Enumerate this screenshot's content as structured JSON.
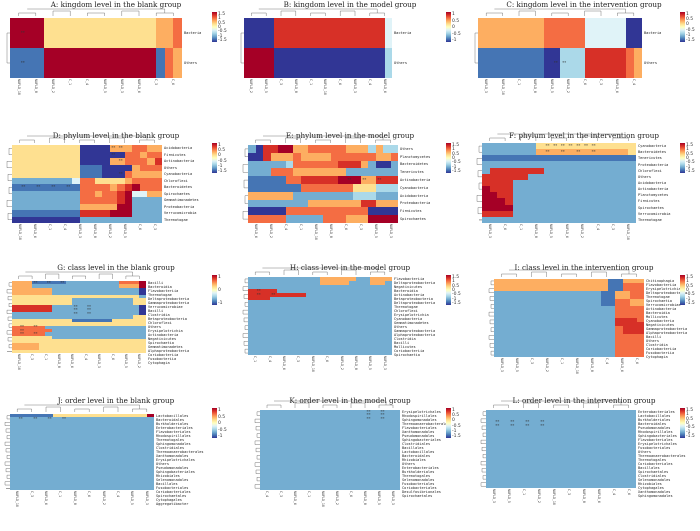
{
  "colors": {
    "dark_red": "#a50026",
    "red": "#d73027",
    "orange": "#f46d43",
    "light_orange": "#fdae61",
    "yellow": "#fee090",
    "pale_blue": "#e0f3f8",
    "light_blue": "#abd9e9",
    "mid_blue": "#74add1",
    "blue": "#4575b4",
    "dark_blue": "#313695"
  },
  "panels": [
    {
      "title": "A: kingdom level in the blank group",
      "ticks": [
        "1.5",
        "1",
        "0.5",
        "0",
        "-0.5",
        "-1",
        "-1.5"
      ],
      "rows": [
        "Bacteria",
        "Others"
      ],
      "cols": [
        "NAFLD_10",
        "NAFLD_8",
        "NAFLD_2",
        "C_1",
        "C_4",
        "NAFLD_5",
        "NAFLD_3",
        "NAFLD_6",
        "C_3",
        "C_6"
      ],
      "grid": [
        "aaaaeeeeeeeeeeeeeddc",
        "iiiiaaaaaaaaaaaaaicd"
      ],
      "star_cells": [
        [
          0,
          1
        ],
        [
          1,
          1
        ]
      ]
    },
    {
      "title": "B: kingdom level in the model group",
      "ticks": [
        "1",
        "0.5",
        "0",
        "-0.5",
        "-1"
      ],
      "rows": [
        "Bacteria",
        "Others"
      ],
      "cols": [
        "NAFLD_2",
        "NAFLD_5",
        "C_3",
        "NAFLD_8",
        "C_1",
        "NAFLD_10",
        "C_6",
        "NAFLD_3",
        "C_4",
        "NAFLD_6"
      ],
      "grid": [
        "jjjjbbbbbbbbbbbbbbbf",
        "aaaajjjjjjjjjjjjjjjg"
      ],
      "star_cells": []
    },
    {
      "title": "C: kingdom level in the intervention group",
      "ticks": [
        "1",
        "0.5",
        "0",
        "-0.5",
        "-1",
        "-1.5"
      ],
      "rows": [
        "Bacteria",
        "Others"
      ],
      "cols": [
        "NAFLD_3",
        "NAFLD_10",
        "C_1",
        "NAFLD_8",
        "NAFLD_5",
        "NAFLD_2",
        "C_6",
        "C_3",
        "NAFLD_6",
        "C_4"
      ],
      "grid": [
        "ddddddddcccccfffffjj",
        "iiiiiiiijjkkkbbbbbcd"
      ],
      "star_cells": [
        [
          1,
          9
        ],
        [
          1,
          10
        ]
      ]
    },
    {
      "title": "D: phylum level in the blank group",
      "ticks": [
        "1",
        "0.5",
        "0",
        "-0.5",
        "-1",
        "-1.5"
      ],
      "rows": [
        "Acidobacteria",
        "Firmicutes",
        "Actinobacteria",
        "Others",
        "Cyanobacteria",
        "Chloroflexi",
        "Bacteroidetes",
        "Spirochaetes",
        "Gemmatimonadetes",
        "Proteobacteria",
        "Verrucomicrobia",
        "Thermotogae"
      ],
      "cols": [
        "NAFLD_10",
        "NAFLD_6",
        "C_1",
        "C_4",
        "NAFLD_3",
        "NAFLD_8",
        "NAFLD_2",
        "NAFLD_5",
        "C_6",
        "C_3"
      ],
      "grid": [
        "eeeeeeeeejjjjdddccdd",
        "eeeeeeeeejjjjjjccdcc",
        "eeeeeeeeejjjjddcccdb",
        "eeeeeeeeeiiijjjjdccc",
        "eeeeeeeeeiiijjjcdddd",
        "hhhhhhhhfcceeeedcccc",
        "iiiiiiiiiccccdcbaccc",
        "hhhhhhhhhccdccbaffdd",
        "hhhhhhhhhcccccbahhhh",
        "hhhhhhhhhdddddaahhhh",
        "iiiiiiiiibbbbaaahhhh",
        "jjjjjjjjjhhhhhhhhhhh"
      ],
      "star_cells": [
        [
          0,
          13
        ],
        [
          0,
          14
        ],
        [
          1,
          13
        ],
        [
          2,
          14
        ],
        [
          4,
          14
        ],
        [
          6,
          1
        ],
        [
          6,
          3
        ],
        [
          6,
          5
        ],
        [
          6,
          7
        ]
      ]
    },
    {
      "title": "E: phylum level in the model group",
      "ticks": [
        "1.5",
        "1",
        "0.5",
        "0",
        "-0.5",
        "-1",
        "-1.5"
      ],
      "rows": [
        "Others",
        "Planctomycetes",
        "Bacteroidetes",
        "Tenericutes",
        "Actinobacteria",
        "Cyanobacteria",
        "Acidobacteria",
        "Proteobacteria",
        "Firmicutes",
        "Spirochaetes"
      ],
      "cols": [
        "NAFLD_6",
        "NAFLD_2",
        "C_4",
        "C_1",
        "NAFLD_10",
        "NAFLD_8",
        "C_6",
        "C_3",
        "NAFLD_5",
        "NAFLD_3"
      ],
      "grid": [
        "hjbbaaddcccccdddgdgg",
        "jjbdddcddddccccccddc",
        "hhhhhgccccccbbbdhjjh",
        "hhhcccdddddddhhhhhhh",
        "iiiiiccbbbbbaaaddbbb",
        "iiiiiiiccccccceeeggg",
        "ddddddhhhhhhhhggghhh",
        "hhhhhhhhdddddddbbddd",
        "jjjjjcccccccccccjjjj",
        "ccccchhhhhcccdddaaaa"
      ],
      "star_cells": [
        [
          4,
          13
        ],
        [
          4,
          15
        ],
        [
          4,
          17
        ]
      ]
    },
    {
      "title": "F: phylum level in the intervention group",
      "ticks": [
        "1.5",
        "1",
        "0.5",
        "0",
        "-0.5",
        "-1",
        "-1.5"
      ],
      "rows": [
        "Cyanobacteria",
        "Bacteroidetes",
        "Tenericutes",
        "Proteobacteria",
        "Chloroflexi",
        "Others",
        "Acidobacteria",
        "Actinobacteria",
        "Planctomycetes",
        "Firmicutes",
        "Spirochaetes",
        "Verrucomicrobia",
        "Thermotogae"
      ],
      "cols": [
        "NAFLD_3",
        "C_6",
        "C_1",
        "NAFLD_8",
        "NAFLD_5",
        "NAFLD_6",
        "NAFLD_2",
        "C_4",
        "C_3",
        "NAFLD_10"
      ],
      "grid": [
        "hhhhhhheeeeeeeeeeeee",
        "hhhhhhhdddddddddddde",
        "iiiiiiiiiiiiiiiiiiii",
        "hhhhhhhhhhhhhhhhhhhh",
        "hbbbbbbbhhhhhhhhhhhh",
        "bbbbbbhhhhhhhhhhhhhh",
        "bbbbhhhhhhhhhhhhhhhh",
        "abbbhhhhhhhhhhhhhhhh",
        "aabbhhhhhhhhhhhhhhhh",
        "aaabhhhhhhhhhhhhhhhh",
        "aaaahhhhhhhhhhhhhhhh",
        "bbbbhhhhhhhhhhhhhhhh",
        "hhhhhhhhhhhhhhhhhhhh"
      ],
      "star_cells": [
        [
          0,
          8
        ],
        [
          0,
          9
        ],
        [
          0,
          10
        ],
        [
          0,
          11
        ],
        [
          0,
          12
        ],
        [
          0,
          13
        ],
        [
          0,
          14
        ],
        [
          1,
          8
        ],
        [
          1,
          10
        ],
        [
          1,
          12
        ],
        [
          1,
          14
        ]
      ]
    },
    {
      "title": "G: class level in the blank group",
      "ticks": [
        "1",
        "0",
        "-1"
      ],
      "rows": [
        "Bacilli",
        "Bacteroidia",
        "Flavobacteriia",
        "Thermotogae",
        "Deltaproteobacteria",
        "Gammaproteobacteria",
        "Verrucomicrobiae",
        "Bacilli",
        "Clostridia",
        "Betaproteobacteria",
        "Chloroflexi",
        "Others",
        "Erysipelotrichia",
        "Actinobacteria",
        "Negativicutes",
        "Spirochaetia",
        "Gemmatimonadetes",
        "Alphaproteobacteria",
        "Coriobacteriia",
        "Fusobacteriia",
        "Cytophagia"
      ],
      "cols": [
        "NAFLD_10",
        "C_3",
        "C_1",
        "NAFLD_8",
        "NAFLD_6",
        "C_4",
        "NAFLD_3",
        "C_6",
        "NAFLD_5",
        "NAFLD_2"
      ],
      "grid": [
        "dddiiiiihhhhhhhhccca",
        "dddhhhhhhhhhhhhhddda",
        "ddddddhhhhhhhhhhhhhj",
        "ddddddhhhhhhhhhhhhhj",
        "eeeeeeeeeeeeeeeeeeeh",
        "eeeeeeeeehhhhhhhhhee",
        "eeeeeeeeehhhhhhhhhee",
        "bbbbbbhhhhhhhhhhhhhj",
        "bbbbbbhhhhhhhhhhhhhj",
        "hhhhhhhhhhhhhhhhhhhj",
        "hhhhhhhhhhhhhhhhhhee",
        "eeeeeeeeeiiiiiieeeee",
        "eeeeeeeeeeeeeeeeeeee",
        "ccccchhhhhhhhhhhhhhh",
        "cccccchhhhhhhhhhhhhh",
        "ccccchhhhhhhhhhhhhhh",
        "eeeeeehhhhhhhhhhhhhh",
        "eeeeeeeeeeeeeeeeeeee",
        "ddddeeeeeeeeeeeeeeee",
        "ddddeeeeeeeeeeeeeeee",
        "eeeeeeeeeeeeeeeeeeee"
      ],
      "star_cells": [
        [
          0,
          3
        ],
        [
          0,
          5
        ],
        [
          0,
          7
        ],
        [
          7,
          9
        ],
        [
          7,
          11
        ],
        [
          8,
          9
        ],
        [
          8,
          11
        ],
        [
          9,
          9
        ],
        [
          9,
          11
        ],
        [
          13,
          1
        ],
        [
          13,
          3
        ],
        [
          14,
          1
        ],
        [
          15,
          1
        ],
        [
          15,
          3
        ]
      ]
    },
    {
      "title": "H: class level in the model group",
      "ticks": [
        "1.5",
        "1",
        "0.5",
        "0",
        "-0.5",
        "-1",
        "-1.5"
      ],
      "rows": [
        "Flavobacteriia",
        "Deltaproteobacteria",
        "Negativicutes",
        "Bacteroidia",
        "Actinobacteria",
        "Betaproteobacteria",
        "Deltaproteobacteria",
        "Thermotogae",
        "Chloroflexi",
        "Erysipelotrichia",
        "Cyanobacteria",
        "Gemmatimonadetes",
        "Others",
        "Gammaproteobacteria",
        "Alphaproteobacteria",
        "Clostridia",
        "Bacilli",
        "Mollicutes",
        "Coriobacteriia",
        "Spirochaetia"
      ],
      "cols": [
        "C_1",
        "C_4",
        "NAFLD_6",
        "C_3",
        "NAFLD_10",
        "C_6",
        "NAFLD_2",
        "NAFLD_8",
        "NAFLD_5",
        "NAFLD_3"
      ],
      "grid": [
        "hhhhhhhhhhdddddhhddd",
        "hhhhhhhhhhddddhhhddh",
        "hhhhhhhhhhhhhhhhhhhh",
        "bbbbhhhhhhhhhhhhhhhh",
        "bbbbbbbbhhhhhhhhhhhh",
        "bbbhhhhhhhhhhhhhhhhh",
        "hhhhhhhhhhhhhhhhhhhh",
        "hhhhhhhhhhhhhhhhhhhh",
        "hhhhhhhhhhhhhhhhhhhh",
        "hhhhhhhhhhhhhhhhhhhh",
        "hhhhhhhhhhhhhhhhhhhh",
        "hhhhhhhhhhhhhhhhhhhh",
        "hhhhhhhhhhhhhhhhhhhh",
        "hhhhhhhhhhhhhhhhhhhh",
        "hhhhhhhhhhhhhhhhhhhh",
        "hhhhhhhhhhhhhhhhhhhh",
        "hhhhhhhhhhhhhhhhhhhh",
        "hhhhhhhhhhhhhhhhhhhh",
        "hhhhhhhhhhhhhhhhhhhh",
        "hhhhhhhhhhhhhhhhhhhh"
      ],
      "star_cells": [
        [
          3,
          1
        ],
        [
          4,
          1
        ],
        [
          4,
          3
        ]
      ]
    },
    {
      "title": "I: class level in the intervention group",
      "ticks": [
        "1.5",
        "1",
        "0.5",
        "0",
        "-0.5",
        "-1",
        "-1.5"
      ],
      "rows": [
        "Chitinophagia",
        "Flavobacteriia",
        "Erysipelotrichia",
        "Deltaproteobacteria",
        "Thermotogae",
        "Spirochaetia",
        "Verrucomicrobiae",
        "Actinobacteria",
        "Bacteroidia",
        "Mollicutes",
        "Cyanobacteria",
        "Negativicutes",
        "Gammaproteobacteria",
        "Alphaproteobacteria",
        "Bacilli",
        "Others",
        "Clostridia",
        "Coriobacteriia",
        "Fusobacteriia",
        "Cytophagia"
      ],
      "cols": [
        "NAFLD_3",
        "NAFLD_5",
        "C_3",
        "NAFLD_2",
        "C_1",
        "NAFLD_10",
        "NAFLD_8",
        "C_4",
        "NAFLD_6",
        "C_6"
      ],
      "grid": [
        "ddddddddddddddddiiddd",
        "ddddddddddddddddiiccc",
        "ddddddddddddddddiiccc",
        "hhhhhhhhhhhhhhhiiddcc",
        "hhhhhhhhhhhhhhhiiddcc",
        "hhhhhhhhhhhhhhhiiccdd",
        "hhhhhhhhhhhhhhhiiccdd",
        "hhhhhhhhhhhhhhhhhcccc",
        "hhhhhhhhhhhhhhhhhcccc",
        "hhhhhhhhhhhhhhhhhcccc",
        "hhhhhhhhhhhhhhhhhbbbc",
        "hhhhhhhhhhhhhhhhhbbbb",
        "hhhhhhhhhhhhhhhhhcbbb",
        "hhhhhhhhhhhhhhhhhcbbb",
        "hhhhhhhhhhhhhhhhhcccc",
        "hhhhhhhhhhhhhhhhhcccc",
        "hhhhhhhhhhhhhhhhhcccc",
        "hhhhhhhhhhhhhhhhhcccc",
        "hhhhhhhhhhhhhhhhhcccc",
        "hhhhhhhhhhhhhhhhhcccc"
      ],
      "star_cells": []
    },
    {
      "title": "J: order level in the blank group",
      "ticks": [
        "1",
        "0.5",
        "0",
        "-0.5",
        "-1"
      ],
      "rows": [
        "Lactobacillales",
        "Bacteroidales",
        "Burkholderiales",
        "Enterobacteriales",
        "Flavobacteriales",
        "Rhodospirillales",
        "Thermotogales",
        "Sphingomonadales",
        "Clostridiales",
        "Thermoanaerobacterales",
        "Xanthomonadales",
        "Erysipelotrichales",
        "Others",
        "Pseudomonadales",
        "Sphingobacteriales",
        "Rhizobiales",
        "Selenomonadales",
        "Bacillales",
        "Fusobacteriales",
        "Coriobacteriales",
        "Spirochaetales",
        "Cytophagales",
        "Aggregatibacter"
      ],
      "cols": [
        "NAFLD_10",
        "C_3",
        "NAFLD_6",
        "C_1",
        "NAFLD_8",
        "C_6",
        "NAFLD_2",
        "C_4",
        "NAFLD_5",
        "NAFLD_3"
      ],
      "grid": [
        "iiiiiieeeeeeeeeeeeea",
        "hhhhhhhhhhhhhhhhhhhh",
        "hhhhhhhhhhhhhhhhhhhh",
        "hhhhhhhhhhhhhhhhhhhh",
        "hhhhhhhhhhhhhhhhhhhh",
        "hhhhhhhhhhhhhhhhhhhh",
        "hhhhhhhhhhhhhhhhhhhh",
        "hhhhhhhhhhhhhhhhhhhh",
        "hhhhhhhhhhhhhhhhhhhh",
        "hhhhhhhhhhhhhhhhhhhh",
        "hhhhhhhhhhhhhhhhhhhh",
        "hhhhhhhhhhhhhhhhhhhh",
        "hhhhhhhhhhhhhhhhhhhh",
        "hhhhhhhhhhhhhhhhhhhh",
        "hhhhhhhhhhhhhhhhhhhh",
        "hhhhhhhhhhhhhhhhhhhh",
        "hhhhhhhhhhhhhhhhhhhh",
        "hhhhhhhhhhhhhhhhhhhh",
        "hhhhhhhhhhhhhhhhhhhh",
        "hhhhhhhhhhhhhhhhhhhh",
        "hhhhhhhhhhhhhhhhhhhh",
        "hhhhhhhhhhhhhhhhhhhh",
        "hhhhhhhhhhhhhhhhhhhh"
      ],
      "star_cells": [
        [
          1,
          1
        ],
        [
          1,
          3
        ],
        [
          1,
          5
        ],
        [
          1,
          7
        ]
      ]
    },
    {
      "title": "K: order level in the model group",
      "ticks": [
        "1",
        "0.5",
        "0",
        "-0.5",
        "-1",
        "-1.5"
      ],
      "rows": [
        "Erysipelotrichales",
        "Rhodospirillales",
        "Sphingomonadales",
        "Thermoanaerobacterales",
        "Flavobacteriales",
        "Xanthomonadales",
        "Pseudomonadales",
        "Sphingobacteriales",
        "Clostridiales",
        "Bacillales",
        "Lactobacillales",
        "Bacteroidales",
        "Rhizobiales",
        "Others",
        "Enterobacteriales",
        "Burkholderiales",
        "Thermotogales",
        "Selenomonadales",
        "Fusobacteriales",
        "Coriobacteriales",
        "Desulfovibrionales",
        "Spirochaetales"
      ],
      "cols": [
        "C_4",
        "C_3",
        "NAFLD_6",
        "C_1",
        "NAFLD_10",
        "NAFLD_2",
        "C_6",
        "NAFLD_8",
        "NAFLD_5",
        "NAFLD_3"
      ],
      "grid": [
        "hhhhhhhhhhhhhhhhhhhh",
        "hhhhhhhhhhhhhhhhhhhh",
        "hhhhhhhhhhhhhhhhhhhh",
        "hhhhhhhhhhhhhhhhhhhh",
        "hhhhhhhhhhhhhhhhhhhh",
        "hhhhhhhhhhhhhhhhhhhh",
        "hhhhhhhhhhhhhhhhhhhh",
        "hhhhhhhhhhhhhhhhhhhh",
        "hhhhhhhhhhhhhhhhhhhh",
        "hhhhhhhhhhhhhhhhhhhh",
        "hhhhhhhhhhhhhhhhhhhh",
        "hhhhhhhhhhhhhhhhhhhh",
        "hhhhhhhhhhhhhhhhhhhh",
        "hhhhhhhhhhhhhhhhhhhh",
        "hhhhhhhhhhhhhhhhhhhh",
        "hhhhhhhhhhhhhhhhhhhh",
        "hhhhhhhhhhhhhhhhhhhh",
        "hhhhhhhhhhhhhhhhhhhh",
        "hhhhhhhhhhhhhhhhhhhh",
        "hhhhhhhhhhhhhhhhhhhh",
        "hhhhhhhhhhhhhhhhhhhh",
        "hhhhhhhhhhhhhhhhhhhh"
      ],
      "star_cells": [
        [
          0,
          15
        ],
        [
          0,
          17
        ],
        [
          1,
          15
        ],
        [
          1,
          17
        ],
        [
          2,
          15
        ],
        [
          2,
          17
        ]
      ]
    },
    {
      "title": "L: order level in the intervention group",
      "ticks": [
        "1.5",
        "1",
        "0.5",
        "0",
        "-0.5",
        "-1",
        "-1.5"
      ],
      "rows": [
        "Enterobacteriales",
        "Lactobacillales",
        "Burkholderiales",
        "Bacteroidales",
        "Pseudomonadales",
        "Rhodospirillales",
        "Sphingobacteriales",
        "Flavobacteriales",
        "Erysipelotrichales",
        "Fusobacteriales",
        "Others",
        "Thermoanaerobacterales",
        "Thermotogales",
        "Coriobacteriales",
        "Bacillales",
        "Spirochaetales",
        "Clostridiales",
        "Selenomonadales",
        "Rhizobiales",
        "Cytophagales",
        "Xanthomonadales",
        "Sphingomonadales"
      ],
      "cols": [
        "NAFLD_3",
        "NAFLD_5",
        "C_1",
        "NAFLD_2",
        "NAFLD_10",
        "C_3",
        "NAFLD_8",
        "NAFLD_6",
        "C_4",
        "C_6"
      ],
      "grid": [
        "hhhhhhhhhhhhhhhhhhhh",
        "hhhhhhhhhhhhhhhhhhhh",
        "hhhhhhhhhhhhhhhhhhhh",
        "hhhhhhhhhhhhhhhhhhhh",
        "hhhhhhhhhhhhhhhhhhhh",
        "hhhhhhhhhhhhhhhhhhhh",
        "hhhhhhhhhhhhhhhhhhhh",
        "hhhhhhhhhhhhhhhhhhhh",
        "hhhhhhhhhhhhhhhhhhhh",
        "hhhhhhhhhhhhhhhhhhhh",
        "hhhhhhhhhhhhhhhhhhhh",
        "hhhhhhhhhhhhhhhhhhhh",
        "hhhhhhhhhhhhhhhhhhhh",
        "hhhhhhhhhhhhhhhhhhhh",
        "hhhhhhhhhhhhhhhhhhhh",
        "hhhhhhhhhhhhhhhhhhhh",
        "hhhhhhhhhhhhhhhhhhhh",
        "hhhhhhhhhhhhhhhhhhhh",
        "hhhhhhhhhhhhhhhhhhhh",
        "hhhhhhhhhhhhhhhhhhhh",
        "hhhhhhhhhhhhhhhhhhhh",
        "hhhhhhhhhhhhhhhhhhhh"
      ],
      "star_cells": [
        [
          3,
          1
        ],
        [
          3,
          3
        ],
        [
          3,
          5
        ],
        [
          3,
          7
        ],
        [
          4,
          1
        ],
        [
          4,
          3
        ],
        [
          4,
          5
        ],
        [
          4,
          7
        ]
      ]
    }
  ]
}
